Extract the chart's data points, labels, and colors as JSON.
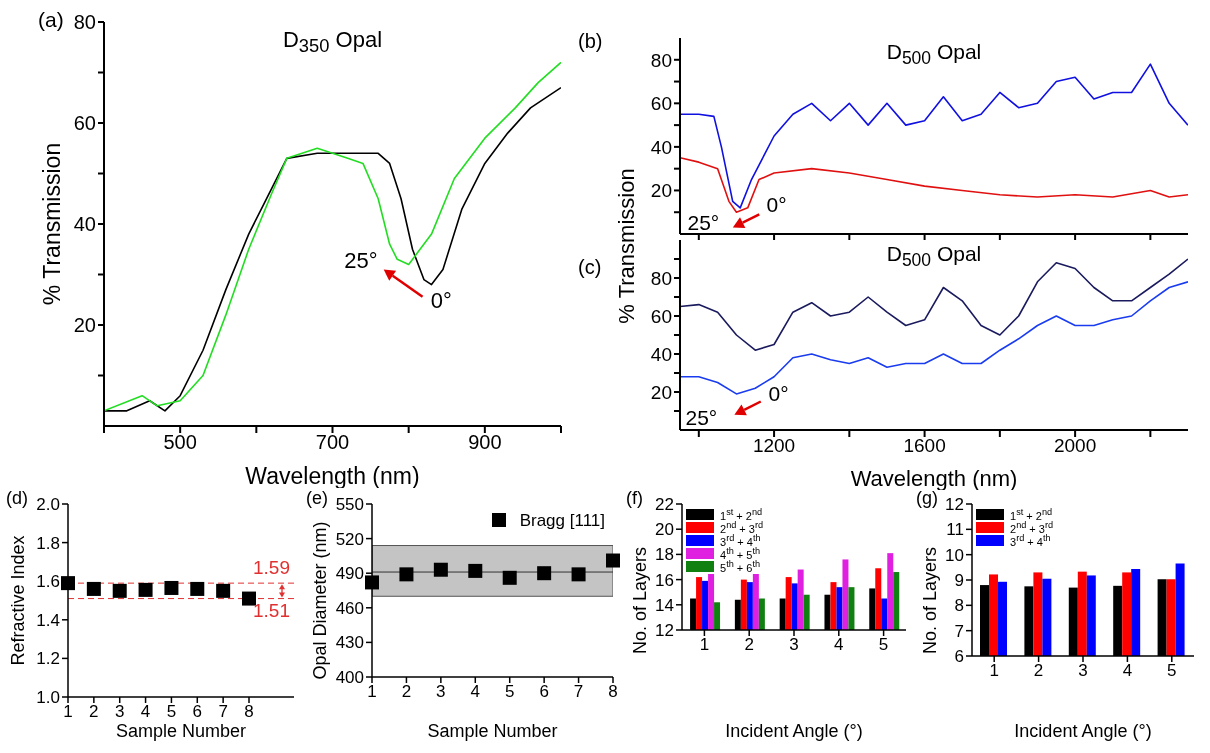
{
  "chart_data": [
    {
      "type": "line",
      "title": "D$_{350}$ Opal",
      "xlabel": "Wavelength (nm)",
      "ylabel": "% Transmission",
      "xlim": [
        400,
        1000
      ],
      "ylim": [
        0,
        80
      ],
      "xticks": [
        {
          "value": 400,
          "label": null
        },
        500,
        {
          "value": 600,
          "label": null
        },
        700,
        {
          "value": 800,
          "label": null
        },
        900,
        {
          "value": 1000,
          "label": null
        }
      ],
      "yticks": [
        {
          "value": 10,
          "label": null
        },
        20,
        {
          "value": 30,
          "label": null
        },
        40,
        {
          "value": 50,
          "label": null
        },
        60,
        {
          "value": 70,
          "label": null
        },
        80
      ],
      "series": [
        {
          "color": "#000000",
          "x": [
            400,
            430,
            460,
            480,
            500,
            530,
            560,
            590,
            610,
            640,
            680,
            720,
            760,
            775,
            790,
            805,
            820,
            830,
            845,
            870,
            900,
            930,
            960,
            1000
          ],
          "values": [
            3,
            3,
            5,
            3,
            6,
            15,
            27,
            38,
            44,
            53,
            54,
            54,
            54,
            52,
            45,
            35,
            29,
            28,
            31,
            43,
            52,
            58,
            63,
            67
          ]
        },
        {
          "color": "#22dd22",
          "x": [
            400,
            450,
            470,
            500,
            530,
            560,
            590,
            620,
            640,
            680,
            720,
            740,
            760,
            775,
            785,
            800,
            830,
            860,
            900,
            940,
            970,
            1000
          ],
          "values": [
            3,
            6,
            4,
            5,
            10,
            22,
            35,
            46,
            53,
            55,
            53,
            52,
            45,
            36,
            33,
            32,
            38,
            49,
            57,
            63,
            68,
            72
          ]
        }
      ],
      "annotations": [
        "(a)",
        "25°",
        "0°"
      ]
    },
    {
      "type": "line",
      "title": "D$_{500}$ Opal",
      "ylabel": "% Transmission",
      "xlim": [
        950,
        2300
      ],
      "ylim": [
        0,
        90
      ],
      "tick_labels": "y",
      "xticks": [
        {
          "value": 1000,
          "label": null
        },
        {
          "value": 1200,
          "label": null
        },
        {
          "value": 1400,
          "label": null
        },
        {
          "value": 1600,
          "label": null
        },
        {
          "value": 1800,
          "label": null
        },
        {
          "value": 2000,
          "label": null
        },
        {
          "value": 2200,
          "label": null
        }
      ],
      "yticks": [
        {
          "value": 10,
          "label": null
        },
        20,
        {
          "value": 30,
          "label": null
        },
        40,
        {
          "value": 50,
          "label": null
        },
        60,
        {
          "value": 70,
          "label": null
        },
        80
      ],
      "series": [
        {
          "color": "#1010e0",
          "x": [
            950,
            1000,
            1040,
            1060,
            1090,
            1110,
            1140,
            1200,
            1250,
            1300,
            1350,
            1400,
            1450,
            1500,
            1550,
            1600,
            1650,
            1700,
            1750,
            1800,
            1850,
            1900,
            1950,
            2000,
            2050,
            2100,
            2150,
            2200,
            2250,
            2300
          ],
          "values": [
            55,
            55,
            54,
            40,
            15,
            12,
            25,
            45,
            55,
            60,
            52,
            60,
            50,
            60,
            50,
            52,
            63,
            52,
            55,
            65,
            58,
            60,
            70,
            72,
            62,
            65,
            65,
            78,
            60,
            50
          ]
        },
        {
          "color": "#e01010",
          "x": [
            950,
            1000,
            1050,
            1080,
            1100,
            1130,
            1160,
            1200,
            1300,
            1400,
            1500,
            1600,
            1700,
            1800,
            1900,
            2000,
            2100,
            2200,
            2250,
            2300
          ],
          "values": [
            35,
            33,
            30,
            15,
            10,
            12,
            25,
            28,
            30,
            28,
            25,
            22,
            20,
            18,
            17,
            18,
            17,
            20,
            17,
            18
          ]
        }
      ],
      "annotations": [
        "(b)",
        "0°",
        "25°"
      ]
    },
    {
      "type": "line",
      "title": "D$_{500}$ Opal",
      "xlabel": "Wavelength (nm)",
      "xlim": [
        950,
        2300
      ],
      "ylim": [
        0,
        100
      ],
      "xticks": [
        {
          "value": 1000,
          "label": null
        },
        1200,
        {
          "value": 1400,
          "label": null
        },
        1600,
        {
          "value": 1800,
          "label": null
        },
        2000,
        {
          "value": 2200,
          "label": null
        }
      ],
      "yticks": [
        {
          "value": 10,
          "label": null
        },
        20,
        {
          "value": 30,
          "label": null
        },
        40,
        {
          "value": 50,
          "label": null
        },
        60,
        {
          "value": 70,
          "label": null
        },
        80,
        {
          "value": 90,
          "label": null
        }
      ],
      "series": [
        {
          "color": "#1a1a5e",
          "x": [
            950,
            1000,
            1050,
            1100,
            1150,
            1200,
            1250,
            1300,
            1350,
            1400,
            1450,
            1500,
            1550,
            1600,
            1650,
            1700,
            1750,
            1800,
            1850,
            1900,
            1950,
            2000,
            2050,
            2100,
            2150,
            2200,
            2250,
            2300
          ],
          "values": [
            65,
            66,
            62,
            50,
            42,
            45,
            62,
            67,
            60,
            62,
            70,
            62,
            55,
            58,
            75,
            68,
            55,
            50,
            60,
            78,
            88,
            85,
            75,
            68,
            68,
            75,
            82,
            90
          ]
        },
        {
          "color": "#1a3cf0",
          "x": [
            950,
            1000,
            1050,
            1100,
            1150,
            1200,
            1250,
            1300,
            1350,
            1400,
            1450,
            1500,
            1550,
            1600,
            1650,
            1700,
            1750,
            1800,
            1850,
            1900,
            1950,
            2000,
            2050,
            2100,
            2150,
            2200,
            2250,
            2300
          ],
          "values": [
            28,
            28,
            25,
            19,
            22,
            28,
            38,
            40,
            37,
            35,
            38,
            33,
            35,
            35,
            40,
            35,
            35,
            42,
            48,
            55,
            60,
            55,
            55,
            58,
            60,
            68,
            75,
            78
          ]
        }
      ],
      "annotations": [
        "(c)",
        "0°",
        "25°"
      ]
    },
    {
      "type": "scatter",
      "xlabel": "Sample Number",
      "ylabel": "Refractive Index",
      "categories": [
        "1",
        "2",
        "3",
        "4",
        "5",
        "6",
        "7",
        "8"
      ],
      "ylim": [
        1,
        2
      ],
      "marker": "square",
      "yticks": [
        {
          "value": 1,
          "label": "1.0"
        },
        1.2,
        1.4,
        1.6,
        1.8,
        {
          "value": 2,
          "label": "2.0"
        }
      ],
      "series": [
        {
          "color": "#000000",
          "values": [
            1.59,
            1.56,
            1.55,
            1.555,
            1.565,
            1.56,
            1.55,
            1.51
          ]
        }
      ],
      "ref_lines": [
        {
          "axis": "y",
          "value": 1.59,
          "label": "1.59",
          "color": "#e03030",
          "line_style": "dashed"
        },
        {
          "axis": "y",
          "value": 1.51,
          "label": "1.51",
          "color": "#e03030",
          "line_style": "dashed"
        }
      ],
      "annotations": [
        "(d)"
      ]
    },
    {
      "type": "scatter",
      "xlabel": "Sample Number",
      "ylabel": "Opal Diameter (nm)",
      "categories": [
        "1",
        "2",
        "3",
        "4",
        "5",
        "6",
        "7",
        "8"
      ],
      "ylim": [
        400,
        550
      ],
      "marker": "square",
      "legend": "top right",
      "yticks": [
        400,
        430,
        460,
        490,
        520,
        550
      ],
      "series": [
        {
          "name": "Bragg [111]",
          "color": "#000000",
          "values": [
            482,
            489,
            493,
            492,
            486,
            490,
            489,
            501
          ]
        }
      ],
      "ref_lines": [
        {
          "axis": "y",
          "value": 491,
          "color": "#333333",
          "line_style": "solid"
        }
      ],
      "bands": [
        {
          "axis": "y",
          "from": 470,
          "to": 514,
          "color": "#c4c4c4"
        }
      ],
      "annotations": [
        "(e)"
      ]
    },
    {
      "type": "bar",
      "xlabel": "Incident Angle (°)",
      "ylabel": "No. of Layers",
      "categories": [
        "1",
        "2",
        "3",
        "4",
        "5"
      ],
      "ylim": [
        12,
        22
      ],
      "yticks": [
        12,
        14,
        16,
        18,
        20,
        22
      ],
      "legend": "top left",
      "series": [
        {
          "name": "1$^{st}$ + 2$^{nd}$",
          "color": "#000000",
          "values": [
            14.5,
            14.4,
            14.5,
            14.8,
            15.3
          ]
        },
        {
          "name": "2$^{nd}$ + 3$^{rd}$",
          "color": "#ff0000",
          "values": [
            16.2,
            16.0,
            16.2,
            15.8,
            16.9
          ]
        },
        {
          "name": "3$^{rd}$ + 4$^{th}$",
          "color": "#0000ff",
          "values": [
            15.9,
            15.8,
            15.7,
            15.4,
            14.5
          ]
        },
        {
          "name": "4$^{th}$ + 5$^{th}$",
          "color": "#e020e0",
          "values": [
            16.5,
            16.6,
            16.8,
            17.6,
            18.1
          ]
        },
        {
          "name": "5$^{th}$ + 6$^{th}$",
          "color": "#108010",
          "values": [
            14.2,
            14.5,
            14.8,
            15.4,
            16.6
          ]
        }
      ],
      "annotations": [
        "(f)"
      ]
    },
    {
      "type": "bar",
      "xlabel": "Incident Angle (°)",
      "ylabel": "No. of Layers",
      "categories": [
        "1",
        "2",
        "3",
        "4",
        "5"
      ],
      "ylim": [
        6,
        12
      ],
      "yticks": [
        6,
        7,
        8,
        9,
        10,
        11,
        12
      ],
      "legend": "top left",
      "series": [
        {
          "name": "1$^{st}$ + 2$^{nd}$",
          "color": "#000000",
          "values": [
            8.8,
            8.75,
            8.7,
            8.77,
            9.03
          ]
        },
        {
          "name": "2$^{nd}$ + 3$^{rd}$",
          "color": "#ff0000",
          "values": [
            9.22,
            9.3,
            9.33,
            9.3,
            9.03
          ]
        },
        {
          "name": "3$^{rd}$ + 4$^{th}$",
          "color": "#0000ff",
          "values": [
            8.93,
            9.05,
            9.18,
            9.43,
            9.65
          ]
        }
      ],
      "annotations": [
        "(g)"
      ]
    }
  ]
}
